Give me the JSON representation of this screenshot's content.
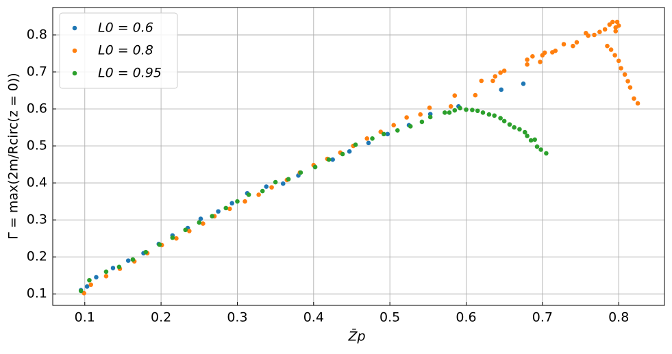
{
  "chart_data": {
    "type": "scatter",
    "x_label": "Z̄p",
    "y_label": "Γ = max(2m/Rcirc(z = 0))",
    "xlim": [
      0.058,
      0.86
    ],
    "ylim": [
      0.069,
      0.874
    ],
    "xticks": [
      0.1,
      0.2,
      0.3,
      0.4,
      0.5,
      0.6,
      0.7,
      0.8
    ],
    "yticks": [
      0.1,
      0.2,
      0.3,
      0.4,
      0.5,
      0.6,
      0.7,
      0.8
    ],
    "grid": true,
    "legend": "upper-left",
    "series": [
      {
        "name": "L0 = 0.6",
        "color": "#1f77b4",
        "x": [
          0.095,
          0.103,
          0.115,
          0.137,
          0.157,
          0.177,
          0.197,
          0.215,
          0.235,
          0.252,
          0.275,
          0.293,
          0.313,
          0.338,
          0.36,
          0.38,
          0.402,
          0.425,
          0.447,
          0.472,
          0.497,
          0.525,
          0.553,
          0.59,
          0.646,
          0.675
        ],
        "values": [
          0.11,
          0.12,
          0.145,
          0.17,
          0.19,
          0.21,
          0.235,
          0.258,
          0.278,
          0.303,
          0.323,
          0.345,
          0.372,
          0.39,
          0.398,
          0.42,
          0.443,
          0.463,
          0.485,
          0.508,
          0.532,
          0.556,
          0.586,
          0.607,
          0.652,
          0.668
        ]
      },
      {
        "name": "L0 = 0.8",
        "color": "#ff7f0e",
        "x": [
          0.099,
          0.108,
          0.128,
          0.146,
          0.165,
          0.182,
          0.201,
          0.22,
          0.237,
          0.255,
          0.27,
          0.29,
          0.31,
          0.328,
          0.345,
          0.365,
          0.382,
          0.4,
          0.418,
          0.435,
          0.452,
          0.47,
          0.488,
          0.505,
          0.522,
          0.54,
          0.552,
          0.58,
          0.585,
          0.612,
          0.62,
          0.635,
          0.638,
          0.645,
          0.65,
          0.68,
          0.68,
          0.687,
          0.697,
          0.7,
          0.703,
          0.713,
          0.717,
          0.728,
          0.74,
          0.745,
          0.757,
          0.76,
          0.768,
          0.775,
          0.782,
          0.788,
          0.792,
          0.796,
          0.798,
          0.8,
          0.796,
          0.785,
          0.79,
          0.795,
          0.8,
          0.803,
          0.808,
          0.812,
          0.815,
          0.82,
          0.825
        ],
        "values": [
          0.102,
          0.125,
          0.148,
          0.168,
          0.188,
          0.21,
          0.232,
          0.25,
          0.27,
          0.29,
          0.31,
          0.33,
          0.35,
          0.368,
          0.388,
          0.408,
          0.428,
          0.448,
          0.465,
          0.482,
          0.5,
          0.52,
          0.538,
          0.556,
          0.577,
          0.585,
          0.603,
          0.607,
          0.636,
          0.637,
          0.676,
          0.676,
          0.688,
          0.698,
          0.703,
          0.72,
          0.733,
          0.742,
          0.727,
          0.745,
          0.752,
          0.753,
          0.757,
          0.775,
          0.77,
          0.78,
          0.805,
          0.798,
          0.8,
          0.808,
          0.815,
          0.828,
          0.835,
          0.82,
          0.835,
          0.825,
          0.81,
          0.77,
          0.76,
          0.745,
          0.73,
          0.71,
          0.693,
          0.675,
          0.658,
          0.628,
          0.615
        ]
      },
      {
        "name": "L0 = 0.95",
        "color": "#2ca02c",
        "x": [
          0.095,
          0.106,
          0.128,
          0.145,
          0.163,
          0.18,
          0.198,
          0.215,
          0.232,
          0.25,
          0.267,
          0.285,
          0.3,
          0.315,
          0.333,
          0.35,
          0.367,
          0.383,
          0.402,
          0.42,
          0.438,
          0.455,
          0.477,
          0.492,
          0.51,
          0.527,
          0.542,
          0.553,
          0.572,
          0.578,
          0.585,
          0.592,
          0.6,
          0.608,
          0.615,
          0.622,
          0.63,
          0.637,
          0.645,
          0.65,
          0.657,
          0.663,
          0.67,
          0.677,
          0.68,
          0.685,
          0.69,
          0.693,
          0.698,
          0.705
        ],
        "values": [
          0.108,
          0.137,
          0.16,
          0.173,
          0.193,
          0.213,
          0.233,
          0.252,
          0.273,
          0.293,
          0.31,
          0.332,
          0.35,
          0.368,
          0.378,
          0.402,
          0.41,
          0.428,
          0.443,
          0.463,
          0.478,
          0.503,
          0.52,
          0.532,
          0.542,
          0.553,
          0.565,
          0.578,
          0.59,
          0.59,
          0.596,
          0.602,
          0.598,
          0.597,
          0.595,
          0.59,
          0.585,
          0.582,
          0.575,
          0.567,
          0.558,
          0.55,
          0.545,
          0.537,
          0.527,
          0.515,
          0.517,
          0.498,
          0.49,
          0.48
        ]
      }
    ]
  }
}
